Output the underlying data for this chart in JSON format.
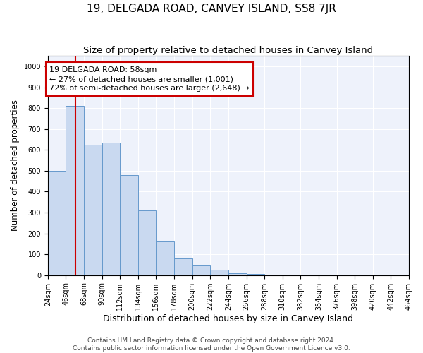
{
  "title": "19, DELGADA ROAD, CANVEY ISLAND, SS8 7JR",
  "subtitle": "Size of property relative to detached houses in Canvey Island",
  "xlabel": "Distribution of detached houses by size in Canvey Island",
  "ylabel": "Number of detached properties",
  "bin_edges": [
    24,
    46,
    68,
    90,
    112,
    134,
    156,
    178,
    200,
    222,
    244,
    266,
    288,
    310,
    332,
    354,
    376,
    398,
    420,
    442,
    464
  ],
  "bar_heights": [
    500,
    810,
    625,
    635,
    480,
    310,
    160,
    80,
    45,
    25,
    10,
    5,
    2,
    1,
    0,
    0,
    0,
    0,
    0,
    0
  ],
  "bar_color": "#c9d9f0",
  "bar_edgecolor": "#6699cc",
  "property_size": 58,
  "red_line_color": "#cc0000",
  "annotation_line1": "19 DELGADA ROAD: 58sqm",
  "annotation_line2": "← 27% of detached houses are smaller (1,001)",
  "annotation_line3": "72% of semi-detached houses are larger (2,648) →",
  "annotation_box_color": "#ffffff",
  "annotation_box_edge": "#cc0000",
  "ylim": [
    0,
    1050
  ],
  "yticks": [
    0,
    100,
    200,
    300,
    400,
    500,
    600,
    700,
    800,
    900,
    1000
  ],
  "footer_line1": "Contains HM Land Registry data © Crown copyright and database right 2024.",
  "footer_line2": "Contains public sector information licensed under the Open Government Licence v3.0.",
  "background_color": "#eef2fb",
  "grid_color": "#ffffff",
  "title_fontsize": 11,
  "subtitle_fontsize": 9.5,
  "xlabel_fontsize": 9,
  "ylabel_fontsize": 8.5,
  "tick_fontsize": 7,
  "annotation_fontsize": 8,
  "footer_fontsize": 6.5
}
